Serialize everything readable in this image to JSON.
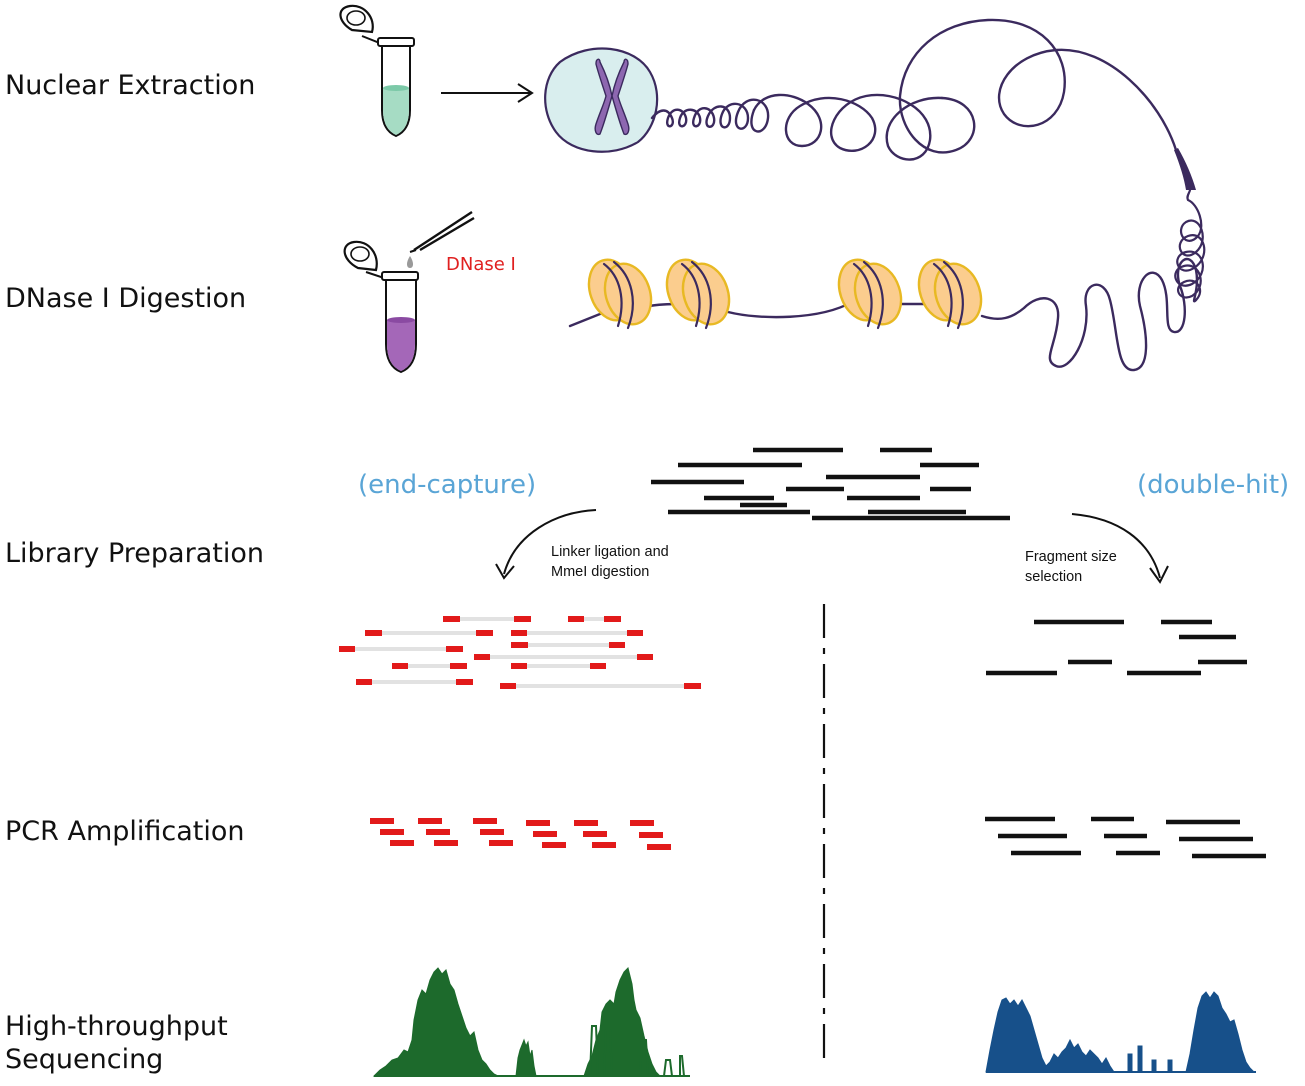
{
  "steps": {
    "nuclear_extraction": "Nuclear Extraction",
    "dnase_digestion": "DNase I Digestion",
    "library_preparation": "Library Preparation",
    "pcr_amplification": "PCR Amplification",
    "sequencing_line1": "High-throughput",
    "sequencing_line2": "Sequencing"
  },
  "enzyme_label": "DNase I",
  "branches": {
    "left": {
      "title": "(end-capture)",
      "note_line1": "Linker ligation and",
      "note_line2": "MmeI digestion"
    },
    "right": {
      "title": "(double-hit)",
      "note_line1": "Fragment size",
      "note_line2": "selection"
    }
  },
  "colors": {
    "dna": "#3b2a5e",
    "nucleus_fill": "#d9eeee",
    "chromosome": "#8d67b0",
    "tube_liquid_green": "#a6dcc4",
    "tube_liquid_purple": "#a467b8",
    "nucleosome_fill": "#fbcd8e",
    "nucleosome_edge": "#e8b923",
    "branch_label": "#5aa5d6",
    "enzyme_label": "#e02020",
    "linker_red": "#e21a1a",
    "insert_gray": "#e2e2e2",
    "fragment_black": "#111111",
    "track_green": "#1d6a2c",
    "track_blue": "#17508a"
  },
  "icons": [
    "tube-icon",
    "pipette-icon",
    "nucleus-icon",
    "chromosome-icon",
    "nucleosome-icon",
    "arrow-icon"
  ]
}
